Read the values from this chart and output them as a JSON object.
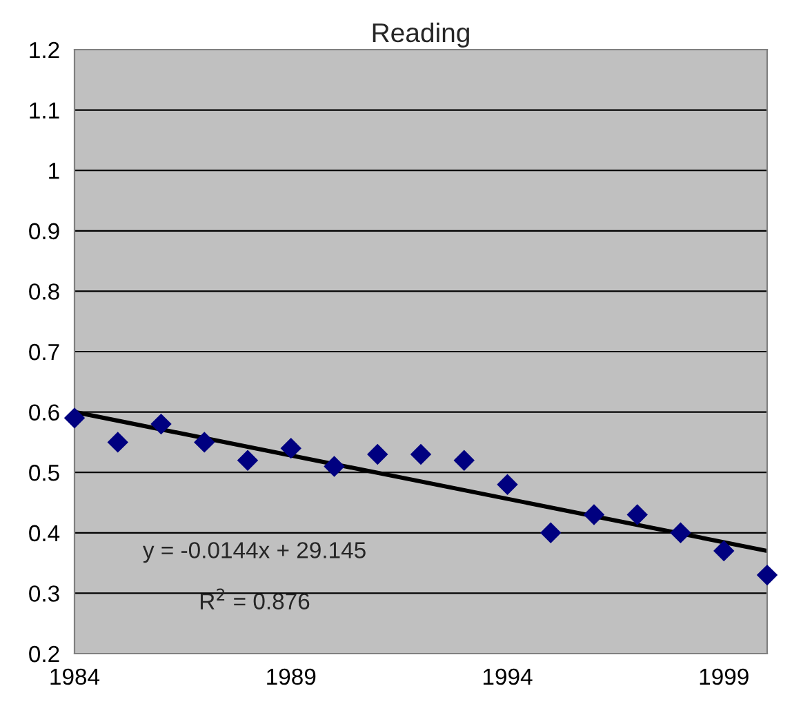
{
  "chart_data": {
    "type": "scatter",
    "title": "Reading",
    "x": [
      1984,
      1985,
      1986,
      1987,
      1988,
      1989,
      1990,
      1991,
      1992,
      1993,
      1994,
      1995,
      1996,
      1997,
      1998,
      1999,
      2000
    ],
    "series": [
      {
        "color": "#000080",
        "marker": "diamond",
        "values": [
          0.59,
          0.55,
          0.58,
          0.55,
          0.52,
          0.54,
          0.51,
          0.53,
          0.53,
          0.52,
          0.48,
          0.4,
          0.43,
          0.43,
          0.4,
          0.37,
          0.33
        ]
      },
      {
        "type": "line",
        "color": "#000000",
        "marker": "none",
        "line_style": "solid",
        "x": [
          1984,
          2000
        ],
        "values": [
          0.6,
          0.37
        ]
      }
    ],
    "xlim": [
      1984,
      2000
    ],
    "xticks": [
      1984,
      1989,
      1994,
      1999
    ],
    "ylim": [
      0.2,
      1.2
    ],
    "yticks": [
      0.2,
      0.3,
      0.4,
      0.5,
      0.6,
      0.7,
      0.8,
      0.9,
      1,
      1.1,
      1.2
    ],
    "grid": "y",
    "legend": false,
    "annotations": [
      "y = -0.0144x + 29.145",
      "R$^{2}$ = 0.876"
    ]
  }
}
